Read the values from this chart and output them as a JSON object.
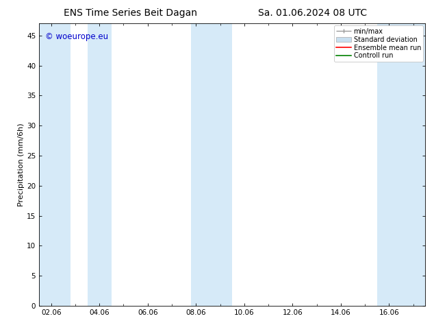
{
  "title_left": "ENS Time Series Beit Dagan",
  "title_right": "Sa. 01.06.2024 08 UTC",
  "ylabel": "Precipitation (mm/6h)",
  "ylim": [
    0,
    47
  ],
  "yticks": [
    0,
    5,
    10,
    15,
    20,
    25,
    30,
    35,
    40,
    45
  ],
  "xlabel_dates": [
    "02.06",
    "04.06",
    "06.06",
    "08.06",
    "10.06",
    "12.06",
    "14.06",
    "16.06"
  ],
  "xtick_positions": [
    0,
    2,
    4,
    6,
    8,
    10,
    12,
    14
  ],
  "xlim": [
    -0.5,
    15.5
  ],
  "watermark": "© woeurope.eu",
  "watermark_color": "#0000cc",
  "background_color": "#ffffff",
  "shaded_band_color": "#d6eaf8",
  "shaded_band_alpha": 1.0,
  "shaded_regions": [
    [
      -0.5,
      0.8
    ],
    [
      1.5,
      2.5
    ],
    [
      5.8,
      7.5
    ],
    [
      13.5,
      15.5
    ]
  ],
  "legend_entries": [
    "min/max",
    "Standard deviation",
    "Ensemble mean run",
    "Controll run"
  ],
  "legend_colors_line": [
    "#999999",
    "#c8dff0",
    "#ff0000",
    "#008000"
  ],
  "figsize": [
    6.34,
    4.9
  ],
  "dpi": 100,
  "title_fontsize": 10,
  "axis_fontsize": 8,
  "tick_fontsize": 7.5,
  "legend_fontsize": 7
}
